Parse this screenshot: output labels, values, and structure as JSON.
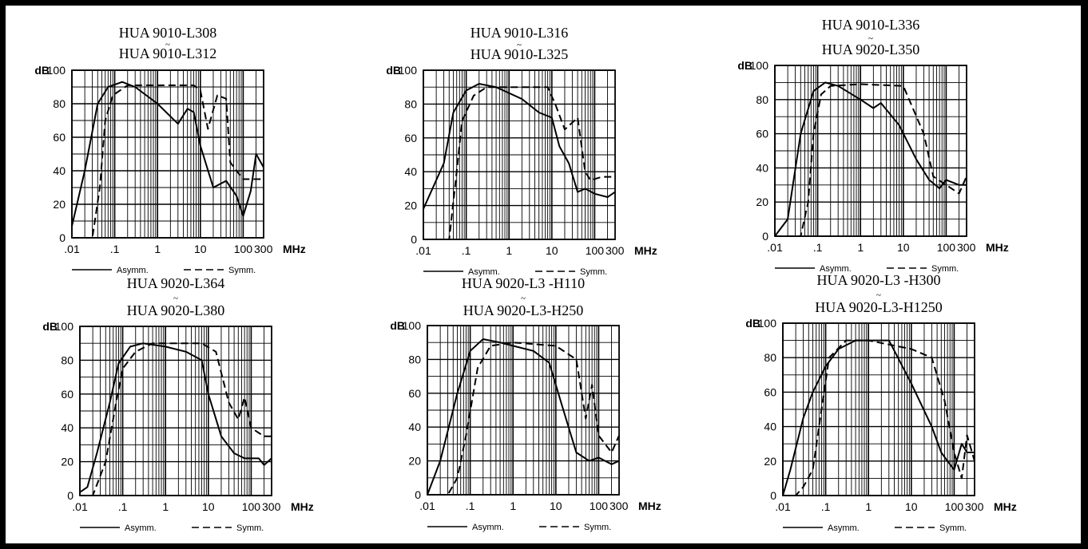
{
  "figure": {
    "y_unit": "dB",
    "x_unit": "MHz",
    "tilde": "~"
  },
  "chart_data": [
    {
      "type": "line",
      "title_line1": "HUA 9010-L308",
      "title_line2": "HUA 9010-L312",
      "xlabel": "MHz",
      "ylabel": "dB",
      "xscale": "log",
      "xlim": [
        0.01,
        300
      ],
      "ylim": [
        0,
        100
      ],
      "x_tick_labels": [
        ".01",
        ".1",
        "1",
        "10",
        "100",
        "300"
      ],
      "y_tick_labels": [
        "0",
        "20",
        "40",
        "60",
        "80",
        "100"
      ],
      "legend": [
        "Asymm.",
        "Symm."
      ],
      "legend_position": "bottom",
      "grid": true,
      "series": [
        {
          "name": "Asymm.",
          "style": "solid",
          "points": [
            [
              0.01,
              7
            ],
            [
              0.02,
              40
            ],
            [
              0.04,
              80
            ],
            [
              0.07,
              90
            ],
            [
              0.15,
              93
            ],
            [
              0.3,
              90
            ],
            [
              1,
              80
            ],
            [
              3,
              68
            ],
            [
              5,
              77
            ],
            [
              7,
              75
            ],
            [
              10,
              55
            ],
            [
              20,
              30
            ],
            [
              40,
              34
            ],
            [
              70,
              25
            ],
            [
              100,
              13
            ],
            [
              150,
              28
            ],
            [
              200,
              50
            ],
            [
              300,
              42
            ]
          ]
        },
        {
          "name": "Symm.",
          "style": "dashed",
          "points": [
            [
              0.01,
              0
            ],
            [
              0.03,
              0
            ],
            [
              0.045,
              30
            ],
            [
              0.06,
              70
            ],
            [
              0.09,
              85
            ],
            [
              0.2,
              91
            ],
            [
              1,
              91
            ],
            [
              7,
              91
            ],
            [
              10,
              88
            ],
            [
              15,
              65
            ],
            [
              25,
              85
            ],
            [
              40,
              83
            ],
            [
              50,
              45
            ],
            [
              70,
              40
            ],
            [
              100,
              35
            ],
            [
              200,
              35
            ],
            [
              300,
              35
            ]
          ]
        }
      ]
    },
    {
      "type": "line",
      "title_line1": "HUA 9010-L316",
      "title_line2": "HUA 9010-L325",
      "xlabel": "MHz",
      "ylabel": "dB",
      "xscale": "log",
      "xlim": [
        0.01,
        300
      ],
      "ylim": [
        0,
        100
      ],
      "x_tick_labels": [
        ".01",
        ".1",
        "1",
        "10",
        "100",
        "300"
      ],
      "y_tick_labels": [
        "0",
        "20",
        "40",
        "60",
        "80",
        "100"
      ],
      "legend": [
        "Asymm.",
        "Symm."
      ],
      "legend_position": "bottom",
      "grid": true,
      "series": [
        {
          "name": "Asymm.",
          "style": "solid",
          "points": [
            [
              0.01,
              18
            ],
            [
              0.03,
              45
            ],
            [
              0.05,
              75
            ],
            [
              0.1,
              88
            ],
            [
              0.2,
              92
            ],
            [
              0.5,
              90
            ],
            [
              2,
              83
            ],
            [
              5,
              75
            ],
            [
              10,
              72
            ],
            [
              15,
              55
            ],
            [
              25,
              45
            ],
            [
              40,
              28
            ],
            [
              60,
              30
            ],
            [
              100,
              27
            ],
            [
              200,
              25
            ],
            [
              300,
              28
            ]
          ]
        },
        {
          "name": "Symm.",
          "style": "dashed",
          "points": [
            [
              0.01,
              0
            ],
            [
              0.04,
              0
            ],
            [
              0.06,
              40
            ],
            [
              0.08,
              70
            ],
            [
              0.15,
              85
            ],
            [
              0.3,
              90
            ],
            [
              1,
              90
            ],
            [
              8,
              90
            ],
            [
              12,
              80
            ],
            [
              20,
              65
            ],
            [
              40,
              72
            ],
            [
              60,
              40
            ],
            [
              80,
              35
            ],
            [
              150,
              37
            ],
            [
              300,
              37
            ]
          ]
        }
      ]
    },
    {
      "type": "line",
      "title_line1": "HUA 9010-L336",
      "title_line2": "HUA 9020-L350",
      "xlabel": "MHz",
      "ylabel": "dB",
      "xscale": "log",
      "xlim": [
        0.01,
        300
      ],
      "ylim": [
        0,
        100
      ],
      "x_tick_labels": [
        ".01",
        ".1",
        "1",
        "10",
        "100",
        "300"
      ],
      "y_tick_labels": [
        "0",
        "20",
        "40",
        "60",
        "80",
        "100"
      ],
      "legend": [
        "Asymm.",
        "Symm."
      ],
      "legend_position": "bottom",
      "grid": true,
      "series": [
        {
          "name": "Asymm.",
          "style": "solid",
          "points": [
            [
              0.01,
              0
            ],
            [
              0.02,
              10
            ],
            [
              0.04,
              60
            ],
            [
              0.08,
              85
            ],
            [
              0.15,
              90
            ],
            [
              0.3,
              88
            ],
            [
              1,
              80
            ],
            [
              2,
              75
            ],
            [
              3,
              78
            ],
            [
              8,
              65
            ],
            [
              20,
              45
            ],
            [
              40,
              33
            ],
            [
              70,
              28
            ],
            [
              100,
              33
            ],
            [
              200,
              30
            ],
            [
              300,
              30
            ]
          ]
        },
        {
          "name": "Symm.",
          "style": "dashed",
          "points": [
            [
              0.01,
              0
            ],
            [
              0.04,
              0
            ],
            [
              0.06,
              20
            ],
            [
              0.08,
              60
            ],
            [
              0.12,
              83
            ],
            [
              0.2,
              88
            ],
            [
              1,
              89
            ],
            [
              10,
              88
            ],
            [
              30,
              60
            ],
            [
              50,
              35
            ],
            [
              100,
              30
            ],
            [
              200,
              25
            ],
            [
              300,
              35
            ]
          ]
        }
      ]
    },
    {
      "type": "line",
      "title_line1": "HUA 9020-L364",
      "title_line2": "HUA 9020-L380",
      "xlabel": "MHz",
      "ylabel": "dB",
      "xscale": "log",
      "xlim": [
        0.01,
        300
      ],
      "ylim": [
        0,
        100
      ],
      "x_tick_labels": [
        ".01",
        ".1",
        "1",
        "10",
        "100",
        "300"
      ],
      "y_tick_labels": [
        "0",
        "20",
        "40",
        "60",
        "80",
        "100"
      ],
      "legend": [
        "Asymm.",
        "Symm."
      ],
      "legend_position": "bottom",
      "grid": true,
      "series": [
        {
          "name": "Asymm.",
          "style": "solid",
          "points": [
            [
              0.01,
              2
            ],
            [
              0.015,
              5
            ],
            [
              0.025,
              25
            ],
            [
              0.05,
              55
            ],
            [
              0.08,
              78
            ],
            [
              0.15,
              88
            ],
            [
              0.3,
              90
            ],
            [
              1,
              88
            ],
            [
              3,
              85
            ],
            [
              7,
              80
            ],
            [
              10,
              60
            ],
            [
              20,
              35
            ],
            [
              40,
              25
            ],
            [
              70,
              22
            ],
            [
              150,
              22
            ],
            [
              200,
              18
            ],
            [
              300,
              22
            ]
          ]
        },
        {
          "name": "Symm.",
          "style": "dashed",
          "points": [
            [
              0.01,
              0
            ],
            [
              0.02,
              0
            ],
            [
              0.04,
              20
            ],
            [
              0.07,
              55
            ],
            [
              0.1,
              75
            ],
            [
              0.2,
              85
            ],
            [
              0.5,
              90
            ],
            [
              1,
              90
            ],
            [
              7,
              90
            ],
            [
              15,
              85
            ],
            [
              30,
              55
            ],
            [
              50,
              45
            ],
            [
              70,
              58
            ],
            [
              100,
              40
            ],
            [
              200,
              35
            ],
            [
              300,
              35
            ]
          ]
        }
      ]
    },
    {
      "type": "line",
      "title_line1": "HUA 9020-L3 -H110",
      "title_line2": "HUA 9020-L3-H250",
      "xlabel": "MHz",
      "ylabel": "dB",
      "xscale": "log",
      "xlim": [
        0.01,
        300
      ],
      "ylim": [
        0,
        100
      ],
      "x_tick_labels": [
        ".01",
        ".1",
        "1",
        "10",
        "100",
        "300"
      ],
      "y_tick_labels": [
        "0",
        "20",
        "40",
        "60",
        "80",
        "100"
      ],
      "legend": [
        "Asymm.",
        "Symm."
      ],
      "legend_position": "bottom",
      "grid": true,
      "series": [
        {
          "name": "Asymm.",
          "style": "solid",
          "points": [
            [
              0.01,
              0
            ],
            [
              0.02,
              20
            ],
            [
              0.05,
              60
            ],
            [
              0.1,
              85
            ],
            [
              0.2,
              92
            ],
            [
              0.5,
              90
            ],
            [
              1,
              88
            ],
            [
              3,
              85
            ],
            [
              7,
              78
            ],
            [
              15,
              50
            ],
            [
              30,
              25
            ],
            [
              60,
              20
            ],
            [
              100,
              22
            ],
            [
              200,
              18
            ],
            [
              300,
              20
            ]
          ]
        },
        {
          "name": "Symm.",
          "style": "dashed",
          "points": [
            [
              0.01,
              0
            ],
            [
              0.03,
              0
            ],
            [
              0.05,
              10
            ],
            [
              0.08,
              35
            ],
            [
              0.15,
              75
            ],
            [
              0.3,
              88
            ],
            [
              1,
              90
            ],
            [
              10,
              88
            ],
            [
              30,
              80
            ],
            [
              50,
              45
            ],
            [
              70,
              65
            ],
            [
              100,
              35
            ],
            [
              200,
              25
            ],
            [
              300,
              35
            ]
          ]
        }
      ]
    },
    {
      "type": "line",
      "title_line1": "HUA 9020-L3 -H300",
      "title_line2": "HUA 9020-L3-H1250",
      "xlabel": "MHz",
      "ylabel": "dB",
      "xscale": "log",
      "xlim": [
        0.01,
        300
      ],
      "ylim": [
        0,
        100
      ],
      "x_tick_labels": [
        ".01",
        ".1",
        "1",
        "10",
        "100",
        "300"
      ],
      "y_tick_labels": [
        "0",
        "20",
        "40",
        "60",
        "80",
        "100"
      ],
      "legend": [
        "Asymm.",
        "Symm."
      ],
      "legend_position": "bottom",
      "grid": true,
      "series": [
        {
          "name": "Asymm.",
          "style": "solid",
          "points": [
            [
              0.01,
              0
            ],
            [
              0.015,
              15
            ],
            [
              0.03,
              45
            ],
            [
              0.05,
              60
            ],
            [
              0.1,
              75
            ],
            [
              0.2,
              85
            ],
            [
              0.5,
              90
            ],
            [
              3,
              90
            ],
            [
              10,
              65
            ],
            [
              30,
              40
            ],
            [
              50,
              25
            ],
            [
              70,
              20
            ],
            [
              100,
              15
            ],
            [
              150,
              30
            ],
            [
              200,
              25
            ],
            [
              300,
              25
            ]
          ]
        },
        {
          "name": "Symm.",
          "style": "dashed",
          "points": [
            [
              0.01,
              0
            ],
            [
              0.02,
              0
            ],
            [
              0.03,
              5
            ],
            [
              0.05,
              15
            ],
            [
              0.08,
              50
            ],
            [
              0.12,
              80
            ],
            [
              0.3,
              90
            ],
            [
              1,
              90
            ],
            [
              10,
              85
            ],
            [
              30,
              80
            ],
            [
              60,
              55
            ],
            [
              100,
              25
            ],
            [
              150,
              10
            ],
            [
              200,
              35
            ],
            [
              300,
              20
            ]
          ]
        }
      ]
    }
  ]
}
